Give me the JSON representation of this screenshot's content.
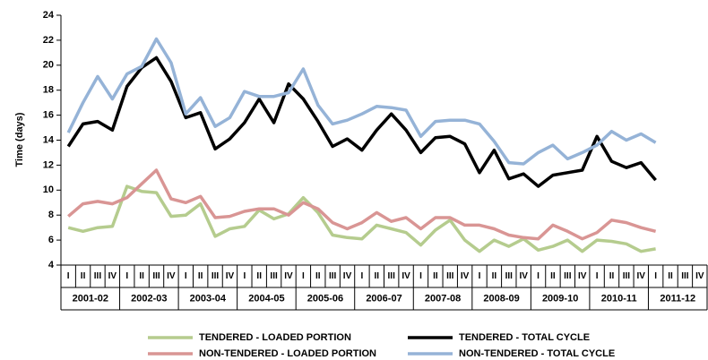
{
  "chart_data": {
    "type": "line",
    "y_label": "Time (days)",
    "ylim": [
      4,
      24
    ],
    "yticks": [
      4,
      6,
      8,
      10,
      12,
      14,
      16,
      18,
      20,
      22,
      24
    ],
    "grid": false,
    "legend_position": "bottom",
    "categories": [
      "I",
      "II",
      "III",
      "IV",
      "I",
      "II",
      "III",
      "IV",
      "I",
      "II",
      "III",
      "IV",
      "I",
      "II",
      "III",
      "IV",
      "I",
      "II",
      "III",
      "IV",
      "I",
      "II",
      "III",
      "IV",
      "I",
      "II",
      "III",
      "IV",
      "I",
      "II",
      "III",
      "IV",
      "I",
      "II",
      "III",
      "IV",
      "I",
      "II",
      "III",
      "IV",
      "I",
      "II",
      "III",
      "IV"
    ],
    "category_groups": [
      "2001-02",
      "2002-03",
      "2003-04",
      "2004-05",
      "2005-06",
      "2006-07",
      "2007-08",
      "2008-09",
      "2009-10",
      "2010-11",
      "2011-12"
    ],
    "series": [
      {
        "name": "TENDERED - LOADED PORTION",
        "color": "#b5cc8e",
        "values": [
          7.0,
          6.7,
          7.0,
          7.1,
          10.3,
          9.9,
          9.8,
          7.9,
          8.0,
          8.9,
          6.3,
          6.9,
          7.1,
          8.4,
          7.7,
          8.1,
          9.4,
          8.2,
          6.4,
          6.2,
          6.1,
          7.2,
          6.9,
          6.6,
          5.6,
          6.8,
          7.6,
          6.0,
          5.1,
          6.0,
          5.5,
          6.1,
          5.2,
          5.5,
          6.0,
          5.1,
          6.0,
          5.9,
          5.7,
          5.1,
          5.3,
          null,
          null,
          null
        ]
      },
      {
        "name": "TENDERED - TOTAL CYCLE",
        "color": "#000000",
        "values": [
          13.5,
          15.3,
          15.5,
          14.8,
          18.3,
          19.8,
          20.6,
          18.7,
          15.8,
          16.2,
          13.3,
          14.1,
          15.4,
          17.3,
          15.4,
          18.5,
          17.3,
          15.5,
          13.5,
          14.1,
          13.2,
          14.8,
          16.1,
          14.8,
          13.0,
          14.2,
          14.3,
          13.7,
          11.4,
          13.2,
          10.9,
          11.3,
          10.3,
          11.2,
          11.4,
          11.6,
          14.3,
          12.3,
          11.8,
          12.2,
          10.8,
          null,
          null,
          null
        ]
      },
      {
        "name": "NON-TENDERED - LOADED PORTION",
        "color": "#d99594",
        "values": [
          7.9,
          8.9,
          9.1,
          8.9,
          9.4,
          10.5,
          11.6,
          9.3,
          9.0,
          9.5,
          7.8,
          7.9,
          8.3,
          8.5,
          8.5,
          8.0,
          9.0,
          8.5,
          7.4,
          6.9,
          7.4,
          8.2,
          7.5,
          7.8,
          6.9,
          7.8,
          7.8,
          7.2,
          7.2,
          6.9,
          6.4,
          6.2,
          6.1,
          7.2,
          6.7,
          6.1,
          6.6,
          7.6,
          7.4,
          7.0,
          6.7,
          null,
          null,
          null
        ]
      },
      {
        "name": "NON-TENDERED - TOTAL CYCLE",
        "color": "#95b3d7",
        "values": [
          14.6,
          17.0,
          19.1,
          17.3,
          19.3,
          19.9,
          22.1,
          20.2,
          16.1,
          17.4,
          15.1,
          15.8,
          17.9,
          17.5,
          17.5,
          17.8,
          19.7,
          16.8,
          15.3,
          15.6,
          16.1,
          16.7,
          16.6,
          16.4,
          14.3,
          15.5,
          15.6,
          15.6,
          15.3,
          13.9,
          12.2,
          12.1,
          13.0,
          13.6,
          12.5,
          13.0,
          13.6,
          14.7,
          14.0,
          14.5,
          13.8,
          null,
          null,
          null
        ]
      }
    ]
  }
}
